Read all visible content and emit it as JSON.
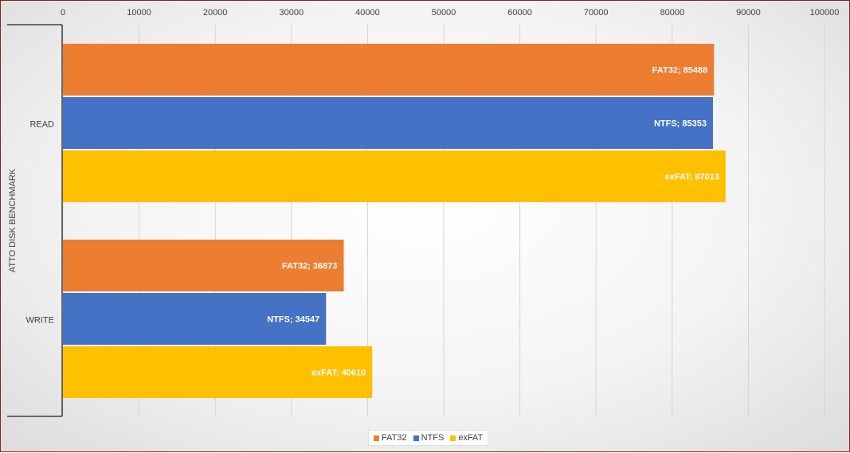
{
  "chart_data": {
    "type": "bar",
    "orientation": "horizontal",
    "group_label": "ATTO DISK BENCHMARK",
    "categories": [
      "READ",
      "WRITE"
    ],
    "series": [
      {
        "name": "FAT32",
        "color": "#ed7d31",
        "values": [
          85488,
          36873
        ]
      },
      {
        "name": "NTFS",
        "color": "#4472c4",
        "values": [
          85353,
          34547
        ]
      },
      {
        "name": "exFAT",
        "color": "#ffc000",
        "values": [
          87013,
          40610
        ]
      }
    ],
    "xlim": [
      0,
      100000
    ],
    "xticks": [
      0,
      10000,
      20000,
      30000,
      40000,
      50000,
      60000,
      70000,
      80000,
      90000,
      100000
    ],
    "x_axis_position": "top",
    "grid": true,
    "legend_position": "bottom",
    "data_label_format": "series; value"
  }
}
